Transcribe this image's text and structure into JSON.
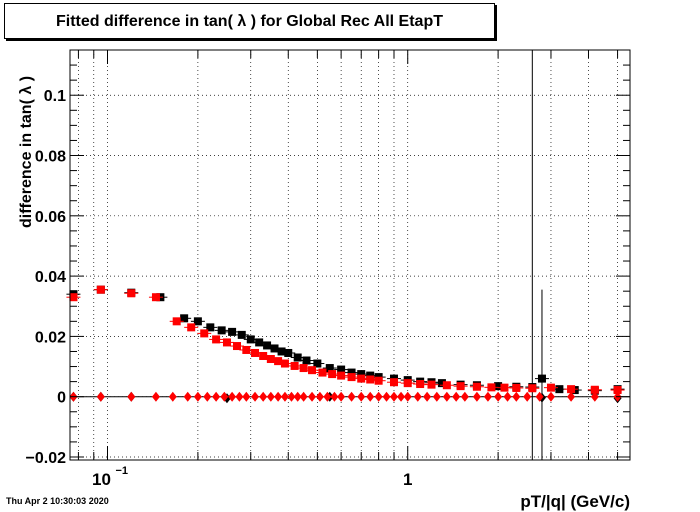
{
  "title": "Fitted difference in tan( λ ) for Global Rec All EtapT",
  "timestamp": "Thu Apr  2 10:30:03 2020",
  "chart_data": {
    "type": "scatter",
    "title": "Fitted difference in tan( λ ) for Global Rec All EtapT",
    "xlabel": "pT/|q| (GeV/c)",
    "ylabel": "difference in tan( λ )",
    "xscale": "log",
    "xlim": [
      0.075,
      5.5
    ],
    "ylim": [
      -0.021,
      0.115
    ],
    "grid": true,
    "xticks": [
      {
        "value": 0.1,
        "label": "10",
        "sup": "−1"
      },
      {
        "value": 1,
        "label": "1"
      }
    ],
    "yticks": [
      -0.02,
      0,
      0.02,
      0.04,
      0.06,
      0.08,
      0.1
    ],
    "ytick_labels": [
      "−0.02",
      "0",
      "0.02",
      "0.04",
      "0.06",
      "0.08",
      "0.1"
    ],
    "series": [
      {
        "color": "#000000",
        "marker": "square",
        "x": [
          0.077,
          0.095,
          0.12,
          0.15,
          0.18,
          0.2,
          0.22,
          0.24,
          0.26,
          0.28,
          0.3,
          0.32,
          0.34,
          0.36,
          0.38,
          0.4,
          0.43,
          0.46,
          0.5,
          0.55,
          0.6,
          0.65,
          0.7,
          0.75,
          0.8,
          0.9,
          1.0,
          1.1,
          1.2,
          1.3,
          1.5,
          1.7,
          2.0,
          2.3,
          2.6,
          2.8,
          3.2,
          3.6,
          4.2,
          5.0
        ],
        "y": [
          0.034,
          0.0355,
          0.0345,
          0.033,
          0.026,
          0.025,
          0.023,
          0.022,
          0.0215,
          0.0205,
          0.019,
          0.018,
          0.017,
          0.016,
          0.015,
          0.0145,
          0.013,
          0.012,
          0.011,
          0.0095,
          0.009,
          0.008,
          0.0075,
          0.007,
          0.0065,
          0.006,
          0.0055,
          0.005,
          0.0048,
          0.0045,
          0.004,
          0.0038,
          0.0035,
          0.0033,
          0.0032,
          0.006,
          0.0025,
          0.0022,
          0.002,
          0.0025
        ]
      },
      {
        "color": "#ff0000",
        "marker": "square",
        "x": [
          0.077,
          0.095,
          0.12,
          0.145,
          0.17,
          0.19,
          0.21,
          0.23,
          0.25,
          0.27,
          0.29,
          0.31,
          0.33,
          0.35,
          0.37,
          0.39,
          0.42,
          0.45,
          0.48,
          0.52,
          0.56,
          0.6,
          0.65,
          0.7,
          0.75,
          0.8,
          0.9,
          1.0,
          1.1,
          1.2,
          1.35,
          1.5,
          1.7,
          1.9,
          2.1,
          2.3,
          2.6,
          3.0,
          3.5,
          4.2,
          5.0
        ],
        "y": [
          0.033,
          0.0355,
          0.0343,
          0.033,
          0.025,
          0.023,
          0.021,
          0.019,
          0.018,
          0.0168,
          0.0155,
          0.0145,
          0.0135,
          0.0125,
          0.0118,
          0.011,
          0.0102,
          0.0095,
          0.0088,
          0.008,
          0.0075,
          0.007,
          0.0065,
          0.006,
          0.0057,
          0.0053,
          0.0048,
          0.0045,
          0.0042,
          0.004,
          0.0038,
          0.0035,
          0.0033,
          0.0031,
          0.003,
          0.0029,
          0.0028,
          0.003,
          0.0025,
          0.0023,
          0.0022
        ]
      },
      {
        "color": "#000000",
        "marker": "diamond",
        "x": [
          0.077,
          0.095,
          0.12,
          0.25,
          0.55,
          2.8,
          5.0
        ],
        "y": [
          0.0,
          0.0,
          0.0,
          -0.0005,
          0.0,
          -0.0003,
          -0.0005
        ]
      },
      {
        "color": "#ff0000",
        "marker": "diamond",
        "x": [
          0.077,
          0.095,
          0.12,
          0.145,
          0.165,
          0.185,
          0.2,
          0.215,
          0.23,
          0.245,
          0.26,
          0.275,
          0.29,
          0.31,
          0.33,
          0.35,
          0.37,
          0.39,
          0.41,
          0.43,
          0.45,
          0.48,
          0.51,
          0.54,
          0.57,
          0.6,
          0.65,
          0.7,
          0.75,
          0.8,
          0.85,
          0.9,
          0.95,
          1.0,
          1.08,
          1.16,
          1.25,
          1.35,
          1.45,
          1.55,
          1.7,
          1.85,
          2.0,
          2.15,
          2.3,
          2.5,
          2.75,
          3.0,
          3.5,
          4.2,
          5.0
        ],
        "y": [
          0.0,
          0.0,
          0.0,
          0.0,
          0.0,
          0.0,
          0.0,
          0.0,
          0.0,
          0.0,
          0.0,
          0.0,
          0.0,
          0.0,
          0.0,
          0.0,
          0.0,
          0.0,
          0.0,
          0.0,
          0.0,
          0.0,
          0.0,
          0.0,
          0.0,
          0.0,
          0.0,
          0.0,
          0.0,
          0.0,
          0.0,
          0.0,
          0.0,
          0.0,
          0.0,
          0.0,
          0.0,
          0.0,
          0.0,
          0.0,
          0.0,
          0.0,
          0.0,
          0.0,
          0.0,
          0.0,
          0.0,
          0.0,
          0.0,
          0.0,
          0.0
        ]
      }
    ],
    "error_bars": [
      {
        "x": 2.6,
        "y": 0.003,
        "ylow": -0.021,
        "yhigh": 0.115,
        "color": "#000000"
      },
      {
        "x": 2.8,
        "y": 0.006,
        "ylow": -0.021,
        "yhigh": 0.0355,
        "color": "#000000"
      }
    ]
  }
}
